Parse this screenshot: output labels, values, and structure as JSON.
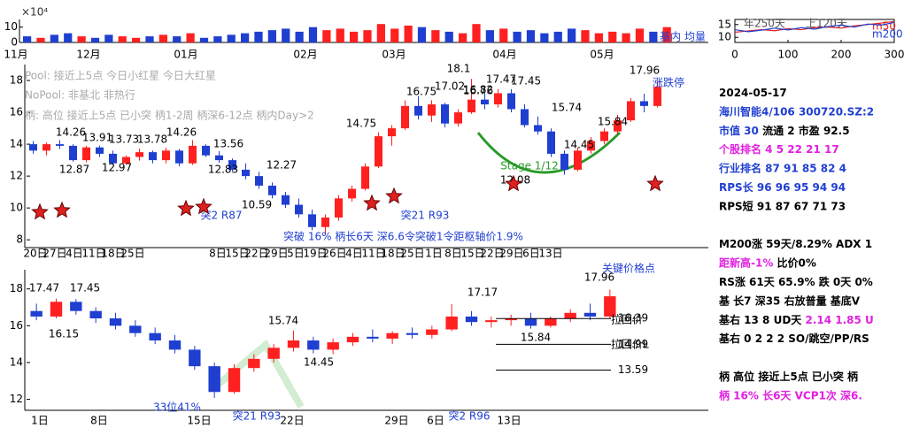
{
  "chart_data": [
    {
      "type": "volume",
      "axis_label": "×10⁴",
      "ylim": [
        0,
        15
      ],
      "yticks": [
        0,
        10
      ],
      "months": [
        "11月",
        "12月",
        "01月",
        "02月",
        "03月",
        "04月",
        "05月"
      ],
      "legend": [
        "基内",
        "均量"
      ],
      "values": [
        4,
        3,
        5,
        6,
        4,
        3,
        5,
        4,
        3,
        4,
        5,
        4,
        6,
        3,
        4,
        5,
        6,
        7,
        8,
        9,
        7,
        10,
        8,
        9,
        7,
        8,
        12,
        9,
        11,
        10,
        8,
        7,
        6,
        12,
        8,
        9,
        7,
        8,
        6,
        7,
        9,
        8,
        6,
        7,
        6,
        9,
        7,
        10
      ]
    },
    {
      "type": "line",
      "xlim": [
        0,
        300
      ],
      "xticks": [
        0,
        100,
        200,
        300
      ],
      "ylim": [
        8,
        17
      ],
      "yticks": [
        10,
        15
      ],
      "labels": [
        "年250天",
        "上120天"
      ],
      "x": [
        0,
        25,
        50,
        75,
        100,
        125,
        150,
        175,
        200,
        225,
        250,
        275,
        300
      ],
      "series": [
        {
          "name": "m50",
          "color": "#e02020",
          "values": [
            12,
            12.5,
            13,
            12.6,
            13.4,
            13,
            13.8,
            14,
            13.6,
            14.5,
            15,
            15.6,
            16.2
          ]
        },
        {
          "name": "m200",
          "color": "#2040d0",
          "values": [
            13,
            12.2,
            12.8,
            13.6,
            12.9,
            13.8,
            13.2,
            14.2,
            14.8,
            14,
            15.2,
            14.8,
            15.8
          ]
        }
      ]
    },
    {
      "type": "candlestick",
      "ylim": [
        7.9,
        19
      ],
      "yticks": [
        8,
        10,
        12,
        14,
        16,
        18
      ],
      "up_color": "#ff2020",
      "down_color": "#1f3fd0",
      "dates": [
        "20日",
        "27日",
        "4日",
        "11日",
        "18日",
        "25日",
        "8日",
        "15日",
        "22日",
        "29日",
        "5日",
        "19日",
        "26日",
        "4日",
        "11日",
        "18日",
        "25日",
        "1日",
        "8日",
        "15日",
        "22日",
        "29日",
        "6日",
        "13日"
      ],
      "candles": [
        {
          "open": 14.0,
          "high": 14.2,
          "low": 13.4,
          "close": 13.6
        },
        {
          "open": 13.6,
          "high": 14.1,
          "low": 13.3,
          "close": 14.0
        },
        {
          "open": 14.0,
          "high": 14.26,
          "low": 13.7,
          "close": 13.9
        },
        {
          "open": 13.9,
          "high": 14.0,
          "low": 12.9,
          "close": 13.0
        },
        {
          "open": 13.0,
          "high": 13.9,
          "low": 12.87,
          "close": 13.8
        },
        {
          "open": 13.8,
          "high": 13.91,
          "low": 13.2,
          "close": 13.4
        },
        {
          "open": 13.4,
          "high": 13.6,
          "low": 12.7,
          "close": 12.8
        },
        {
          "open": 12.8,
          "high": 13.3,
          "low": 12.7,
          "close": 13.2
        },
        {
          "open": 13.2,
          "high": 13.73,
          "low": 12.97,
          "close": 13.5
        },
        {
          "open": 13.5,
          "high": 13.6,
          "low": 12.8,
          "close": 13.0
        },
        {
          "open": 13.0,
          "high": 13.78,
          "low": 12.8,
          "close": 13.6
        },
        {
          "open": 13.6,
          "high": 13.7,
          "low": 12.62,
          "close": 12.8
        },
        {
          "open": 12.8,
          "high": 14.26,
          "low": 12.7,
          "close": 13.9
        },
        {
          "open": 13.9,
          "high": 14.0,
          "low": 13.2,
          "close": 13.3
        },
        {
          "open": 13.3,
          "high": 13.56,
          "low": 12.83,
          "close": 13.0
        },
        {
          "open": 13.0,
          "high": 13.1,
          "low": 12.3,
          "close": 12.4
        },
        {
          "open": 12.4,
          "high": 12.8,
          "low": 11.8,
          "close": 12.0
        },
        {
          "open": 12.0,
          "high": 12.27,
          "low": 11.2,
          "close": 11.4
        },
        {
          "open": 11.4,
          "high": 11.6,
          "low": 10.6,
          "close": 10.8
        },
        {
          "open": 10.8,
          "high": 11.0,
          "low": 10.0,
          "close": 10.2
        },
        {
          "open": 10.2,
          "high": 10.59,
          "low": 9.4,
          "close": 9.6
        },
        {
          "open": 9.6,
          "high": 9.9,
          "low": 8.6,
          "close": 8.8
        },
        {
          "open": 8.8,
          "high": 9.6,
          "low": 8.3,
          "close": 9.4
        },
        {
          "open": 9.4,
          "high": 10.8,
          "low": 9.2,
          "close": 10.6
        },
        {
          "open": 10.6,
          "high": 11.4,
          "low": 10.4,
          "close": 11.2
        },
        {
          "open": 11.2,
          "high": 12.8,
          "low": 11.1,
          "close": 12.6
        },
        {
          "open": 12.6,
          "high": 14.75,
          "low": 12.5,
          "close": 14.5
        },
        {
          "open": 14.5,
          "high": 15.2,
          "low": 13.9,
          "close": 15.0
        },
        {
          "open": 15.0,
          "high": 16.75,
          "low": 14.9,
          "close": 16.4
        },
        {
          "open": 16.4,
          "high": 17.02,
          "low": 15.55,
          "close": 15.8
        },
        {
          "open": 15.8,
          "high": 16.76,
          "low": 15.4,
          "close": 16.5
        },
        {
          "open": 16.5,
          "high": 16.6,
          "low": 15.05,
          "close": 15.3
        },
        {
          "open": 15.3,
          "high": 16.2,
          "low": 15.1,
          "close": 16.0
        },
        {
          "open": 16.0,
          "high": 18.1,
          "low": 15.9,
          "close": 16.8
        },
        {
          "open": 16.8,
          "high": 17.3,
          "low": 16.2,
          "close": 16.5
        },
        {
          "open": 16.5,
          "high": 17.47,
          "low": 16.3,
          "close": 17.2
        },
        {
          "open": 17.2,
          "high": 17.45,
          "low": 16.0,
          "close": 16.2
        },
        {
          "open": 16.2,
          "high": 16.5,
          "low": 15.05,
          "close": 15.2
        },
        {
          "open": 15.2,
          "high": 15.74,
          "low": 14.6,
          "close": 14.8
        },
        {
          "open": 14.8,
          "high": 15.0,
          "low": 13.2,
          "close": 13.4
        },
        {
          "open": 13.4,
          "high": 13.6,
          "low": 12.08,
          "close": 12.4
        },
        {
          "open": 12.4,
          "high": 13.8,
          "low": 12.3,
          "close": 13.6
        },
        {
          "open": 13.6,
          "high": 14.45,
          "low": 13.4,
          "close": 14.2
        },
        {
          "open": 14.2,
          "high": 15.0,
          "low": 14.0,
          "close": 14.8
        },
        {
          "open": 14.8,
          "high": 15.84,
          "low": 14.6,
          "close": 15.5
        },
        {
          "open": 15.5,
          "high": 16.9,
          "low": 15.4,
          "close": 16.7
        },
        {
          "open": 16.7,
          "high": 17.17,
          "low": 16.0,
          "close": 16.4
        },
        {
          "open": 16.4,
          "high": 17.96,
          "low": 16.3,
          "close": 17.6
        }
      ],
      "notes": [
        "Pool: 接近上5点 今日小红星 今日大红星",
        "NoPool: 非基北 非热行",
        "柄: 高位 接近上5点 已小突 柄1-2周 柄深6-12点 柄内Day>2",
        "突破 16% 柄长6天 深6.6令突破1令距枢轴价1.9%"
      ],
      "annotations": [
        "14.26",
        "13.91",
        "13.73",
        "13.78",
        "14.26",
        "13.56",
        "12.87",
        "12.97",
        "12.83",
        "12.27",
        "10.59",
        "14.75",
        "16.75",
        "17.02",
        "16.76",
        "18.1",
        "16.82",
        "17.47",
        "17.45",
        "15.74",
        "14.45",
        "15.84",
        "12.08",
        "17.96",
        "Stage 1/12",
        "涨跌停",
        "突2 R87",
        "突21 R93"
      ]
    },
    {
      "type": "candlestick",
      "ylim": [
        11.5,
        18.9
      ],
      "yticks": [
        12,
        14,
        16,
        18
      ],
      "up_color": "#ff2020",
      "down_color": "#1f3fd0",
      "dates": [
        "1日",
        "8日",
        "15日",
        "22日",
        "29日",
        "6日",
        "13日"
      ],
      "candles": [
        {
          "open": 16.8,
          "high": 17.2,
          "low": 16.3,
          "close": 16.5
        },
        {
          "open": 16.5,
          "high": 17.47,
          "low": 16.4,
          "close": 17.3
        },
        {
          "open": 17.3,
          "high": 17.45,
          "low": 16.6,
          "close": 16.8
        },
        {
          "open": 16.8,
          "high": 17.0,
          "low": 16.15,
          "close": 16.4
        },
        {
          "open": 16.4,
          "high": 16.7,
          "low": 15.8,
          "close": 16.0
        },
        {
          "open": 16.0,
          "high": 16.3,
          "low": 15.4,
          "close": 15.6
        },
        {
          "open": 15.6,
          "high": 15.9,
          "low": 15.0,
          "close": 15.2
        },
        {
          "open": 15.2,
          "high": 15.5,
          "low": 14.5,
          "close": 14.7
        },
        {
          "open": 14.7,
          "high": 14.9,
          "low": 13.6,
          "close": 13.8
        },
        {
          "open": 13.8,
          "high": 14.0,
          "low": 12.08,
          "close": 12.4
        },
        {
          "open": 12.4,
          "high": 13.9,
          "low": 12.3,
          "close": 13.7
        },
        {
          "open": 13.7,
          "high": 14.45,
          "low": 13.5,
          "close": 14.2
        },
        {
          "open": 14.2,
          "high": 15.0,
          "low": 14.0,
          "close": 14.8
        },
        {
          "open": 14.8,
          "high": 15.74,
          "low": 14.6,
          "close": 15.2
        },
        {
          "open": 15.2,
          "high": 15.4,
          "low": 14.5,
          "close": 14.7
        },
        {
          "open": 14.7,
          "high": 15.3,
          "low": 14.45,
          "close": 15.1
        },
        {
          "open": 15.1,
          "high": 15.6,
          "low": 14.9,
          "close": 15.4
        },
        {
          "open": 15.4,
          "high": 15.8,
          "low": 15.1,
          "close": 15.3
        },
        {
          "open": 15.3,
          "high": 15.7,
          "low": 15.0,
          "close": 15.6
        },
        {
          "open": 15.6,
          "high": 15.9,
          "low": 15.3,
          "close": 15.5
        },
        {
          "open": 15.5,
          "high": 16.0,
          "low": 15.3,
          "close": 15.8
        },
        {
          "open": 15.8,
          "high": 17.17,
          "low": 15.7,
          "close": 16.5
        },
        {
          "open": 16.5,
          "high": 16.8,
          "low": 16.0,
          "close": 16.2
        },
        {
          "open": 16.2,
          "high": 16.5,
          "low": 15.9,
          "close": 16.3
        },
        {
          "open": 16.3,
          "high": 16.6,
          "low": 16.0,
          "close": 16.4
        },
        {
          "open": 16.4,
          "high": 16.7,
          "low": 15.84,
          "close": 16.0
        },
        {
          "open": 16.0,
          "high": 16.5,
          "low": 15.9,
          "close": 16.4
        },
        {
          "open": 16.4,
          "high": 16.9,
          "low": 16.2,
          "close": 16.7
        },
        {
          "open": 16.7,
          "high": 17.2,
          "low": 16.3,
          "close": 16.5
        },
        {
          "open": 16.5,
          "high": 17.96,
          "low": 16.4,
          "close": 17.6
        }
      ],
      "levels": [
        {
          "value": 16.39,
          "label": "16.39"
        },
        {
          "value": 14.99,
          "label": "14.99"
        },
        {
          "value": 13.59,
          "label": "13.59"
        }
      ],
      "level_names": [
        "拉回价",
        "拉回价L"
      ],
      "annotations": [
        "17.47",
        "17.45",
        "16.15",
        "15.74",
        "14.45",
        "17.17",
        "17.96",
        "15.84",
        "关键价格点",
        "33位41%",
        "突21 R93",
        "突2 R96"
      ]
    }
  ],
  "panel": [
    [
      {
        "text": "2024-05-17",
        "color": "#000"
      }
    ],
    [
      {
        "text": "海川智能4/106 300720.SZ:2",
        "color": "#1f3fd0"
      }
    ],
    [
      {
        "text": "市值 30",
        "color": "#1f3fd0"
      },
      {
        "text": " 流通 2 市盈 92.5",
        "color": "#000"
      }
    ],
    [
      {
        "text": "个股排名 4  5  22  21  17",
        "color": "#e020e0"
      }
    ],
    [
      {
        "text": "行业排名 87  91  85  82  4",
        "color": "#1f3fd0"
      }
    ],
    [
      {
        "text": "RPS长 96  96  95  94  94",
        "color": "#1f3fd0"
      }
    ],
    [
      {
        "text": "RPS短 91  87  67  71  73",
        "color": "#000"
      }
    ],
    [],
    [
      {
        "text": "M200涨 59天/8.29%  ADX 1",
        "color": "#000"
      }
    ],
    [
      {
        "text": "距新高-1%",
        "color": "#e020e0"
      },
      {
        "text": "  比价0%",
        "color": "#000"
      }
    ],
    [
      {
        "text": "RS涨 61天 65.9% 跌 0天 0%",
        "color": "#000"
      }
    ],
    [
      {
        "text": "基 长7 深35 右放普量 基底V",
        "color": "#000"
      }
    ],
    [
      {
        "text": "基右 13 8 UD天",
        "color": "#000"
      },
      {
        "text": " 2.14 1.85 U",
        "color": "#e020e0"
      }
    ],
    [
      {
        "text": "基右 0 2 2 2 SO/跳空/PP/RS",
        "color": "#000"
      }
    ],
    [],
    [
      {
        "text": "柄 高位 接近上5点 已小突 柄",
        "color": "#000"
      }
    ],
    [
      {
        "text": "柄 16% 长6天 VCP1次 深6.",
        "color": "#e020e0"
      }
    ]
  ]
}
